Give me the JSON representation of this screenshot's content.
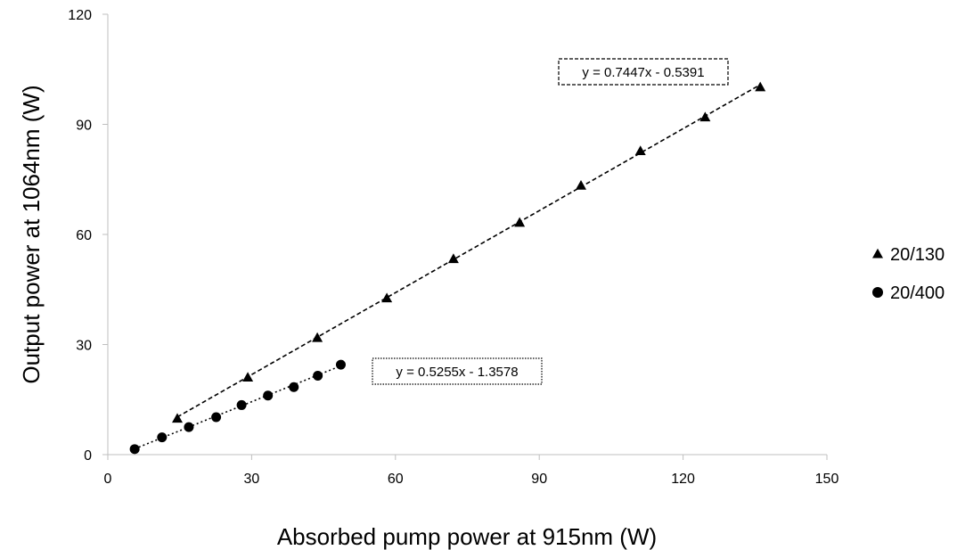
{
  "chart_data": {
    "type": "scatter",
    "title": "",
    "xlabel": "Absorbed pump power at 915nm (W)",
    "ylabel": "Output power at 1064nm (W)",
    "xlim": [
      0,
      150
    ],
    "ylim": [
      0,
      120
    ],
    "xticks": [
      0,
      30,
      60,
      90,
      120,
      150
    ],
    "yticks": [
      0,
      30,
      60,
      90,
      120
    ],
    "grid": false,
    "legend_position": "right",
    "series": [
      {
        "name": "20/130",
        "marker": "triangle",
        "color": "#000000",
        "x": [
          14.5,
          29.2,
          43.7,
          58.2,
          72.1,
          85.9,
          98.7,
          111.1,
          124.6,
          136.1
        ],
        "y": [
          9.8,
          21.0,
          31.8,
          42.6,
          53.3,
          63.2,
          73.3,
          82.7,
          91.9,
          100.1
        ],
        "trendline": {
          "slope": 0.7447,
          "intercept": -0.5391,
          "x_range": [
            14.5,
            136.1
          ],
          "style": "dashed",
          "equation": "y = 0.7447x - 0.5391"
        }
      },
      {
        "name": "20/400",
        "marker": "circle",
        "color": "#000000",
        "x": [
          5.6,
          11.3,
          16.9,
          22.6,
          27.9,
          33.4,
          38.8,
          43.8,
          48.6
        ],
        "y": [
          1.5,
          4.7,
          7.5,
          10.2,
          13.5,
          16.1,
          18.4,
          21.5,
          24.5
        ],
        "trendline": {
          "slope": 0.5255,
          "intercept": -1.3578,
          "x_range": [
            5.6,
            48.6
          ],
          "style": "dotted",
          "equation": "y = 0.5255x - 1.3578"
        }
      }
    ]
  }
}
